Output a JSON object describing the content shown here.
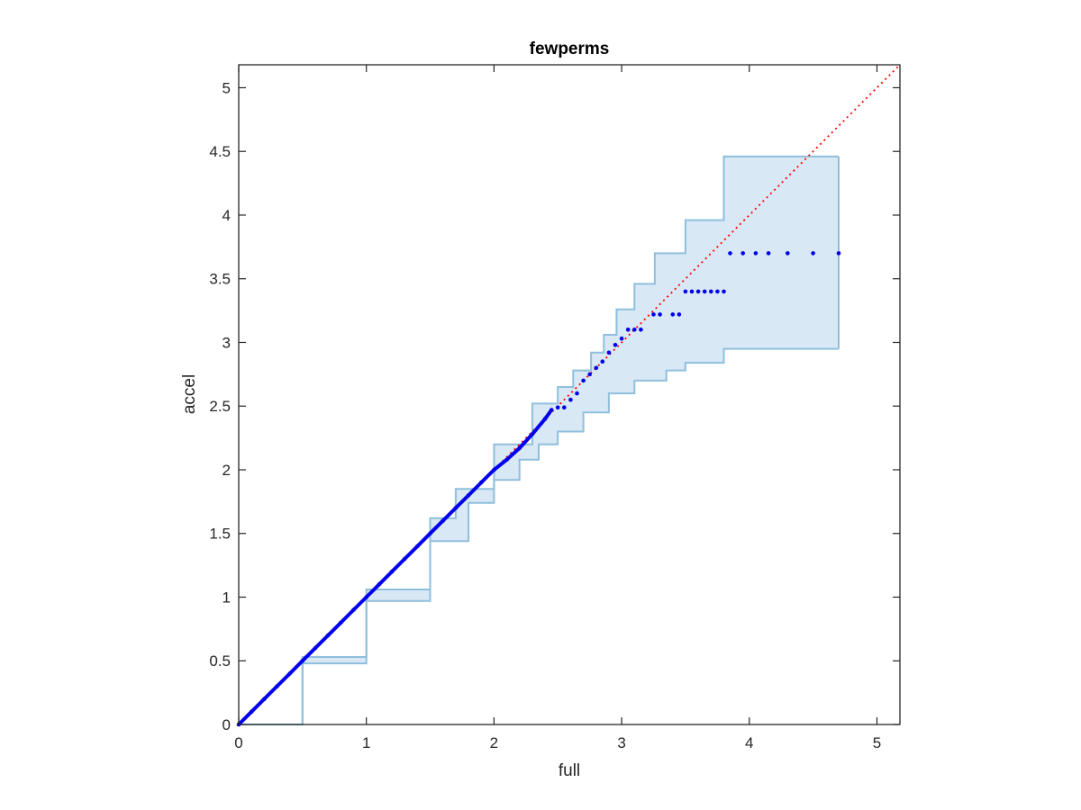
{
  "chart_data": {
    "type": "scatter",
    "title": "fewperms",
    "xlabel": "full",
    "ylabel": "accel",
    "xlim": [
      0,
      5.18
    ],
    "ylim": [
      0,
      5.18
    ],
    "xticks": [
      0,
      1,
      2,
      3,
      4,
      5
    ],
    "yticks": [
      0,
      0.5,
      1,
      1.5,
      2,
      2.5,
      3,
      3.5,
      4,
      4.5,
      5
    ],
    "xtick_labels": [
      "0",
      "1",
      "2",
      "3",
      "4",
      "5"
    ],
    "ytick_labels": [
      "0",
      "0.5",
      "1",
      "1.5",
      "2",
      "2.5",
      "3",
      "3.5",
      "4",
      "4.5",
      "5"
    ],
    "grid": false,
    "colors": {
      "points": "#0000ee",
      "reference_line": "#ff0000",
      "band_fill": "#d8e8f4",
      "band_edge": "#8fbfdd",
      "axes": "#262626"
    },
    "reference_line": {
      "style": "dotted",
      "from": [
        0,
        0
      ],
      "to": [
        5.18,
        5.18
      ]
    },
    "band_upper": [
      [
        0,
        0
      ],
      [
        0.5,
        0.53
      ],
      [
        1,
        1.06
      ],
      [
        1.5,
        1.62
      ],
      [
        1.7,
        1.85
      ],
      [
        2,
        2.2
      ],
      [
        2.3,
        2.52
      ],
      [
        2.5,
        2.65
      ],
      [
        2.62,
        2.78
      ],
      [
        2.76,
        2.92
      ],
      [
        2.86,
        3.06
      ],
      [
        2.96,
        3.26
      ],
      [
        3.1,
        3.46
      ],
      [
        3.26,
        3.7
      ],
      [
        3.5,
        3.96
      ],
      [
        3.8,
        4.46
      ],
      [
        4.7,
        4.46
      ]
    ],
    "band_lower": [
      [
        0,
        0
      ],
      [
        0.5,
        0.48
      ],
      [
        1,
        0.97
      ],
      [
        1.5,
        1.44
      ],
      [
        1.8,
        1.74
      ],
      [
        2,
        1.92
      ],
      [
        2.2,
        2.08
      ],
      [
        2.35,
        2.2
      ],
      [
        2.5,
        2.3
      ],
      [
        2.7,
        2.45
      ],
      [
        2.9,
        2.6
      ],
      [
        3.1,
        2.7
      ],
      [
        3.35,
        2.78
      ],
      [
        3.5,
        2.84
      ],
      [
        3.8,
        2.95
      ],
      [
        4.7,
        2.95
      ]
    ],
    "points": [
      [
        0,
        0
      ],
      [
        0.1,
        0.1
      ],
      [
        0.2,
        0.2
      ],
      [
        0.3,
        0.3
      ],
      [
        0.4,
        0.4
      ],
      [
        0.5,
        0.5
      ],
      [
        0.6,
        0.6
      ],
      [
        0.7,
        0.7
      ],
      [
        0.8,
        0.8
      ],
      [
        0.9,
        0.9
      ],
      [
        1.0,
        1.0
      ],
      [
        1.1,
        1.1
      ],
      [
        1.2,
        1.2
      ],
      [
        1.3,
        1.3
      ],
      [
        1.4,
        1.4
      ],
      [
        1.5,
        1.5
      ],
      [
        1.6,
        1.6
      ],
      [
        1.7,
        1.7
      ],
      [
        1.8,
        1.8
      ],
      [
        1.9,
        1.9
      ],
      [
        2.0,
        2.0
      ],
      [
        2.1,
        2.08
      ],
      [
        2.2,
        2.17
      ],
      [
        2.3,
        2.28
      ],
      [
        2.4,
        2.4
      ],
      [
        2.45,
        2.47
      ],
      [
        2.5,
        2.49
      ],
      [
        2.55,
        2.49
      ],
      [
        2.6,
        2.55
      ],
      [
        2.65,
        2.6
      ],
      [
        2.7,
        2.7
      ],
      [
        2.75,
        2.75
      ],
      [
        2.8,
        2.8
      ],
      [
        2.85,
        2.85
      ],
      [
        2.9,
        2.92
      ],
      [
        2.95,
        2.98
      ],
      [
        3.0,
        3.03
      ],
      [
        3.05,
        3.1
      ],
      [
        3.1,
        3.1
      ],
      [
        3.15,
        3.1
      ],
      [
        3.25,
        3.22
      ],
      [
        3.3,
        3.22
      ],
      [
        3.4,
        3.22
      ],
      [
        3.45,
        3.22
      ],
      [
        3.5,
        3.4
      ],
      [
        3.55,
        3.4
      ],
      [
        3.6,
        3.4
      ],
      [
        3.65,
        3.4
      ],
      [
        3.7,
        3.4
      ],
      [
        3.75,
        3.4
      ],
      [
        3.8,
        3.4
      ],
      [
        3.85,
        3.7
      ],
      [
        3.95,
        3.7
      ],
      [
        4.05,
        3.7
      ],
      [
        4.15,
        3.7
      ],
      [
        4.3,
        3.7
      ],
      [
        4.5,
        3.7
      ],
      [
        4.7,
        3.7
      ]
    ]
  }
}
